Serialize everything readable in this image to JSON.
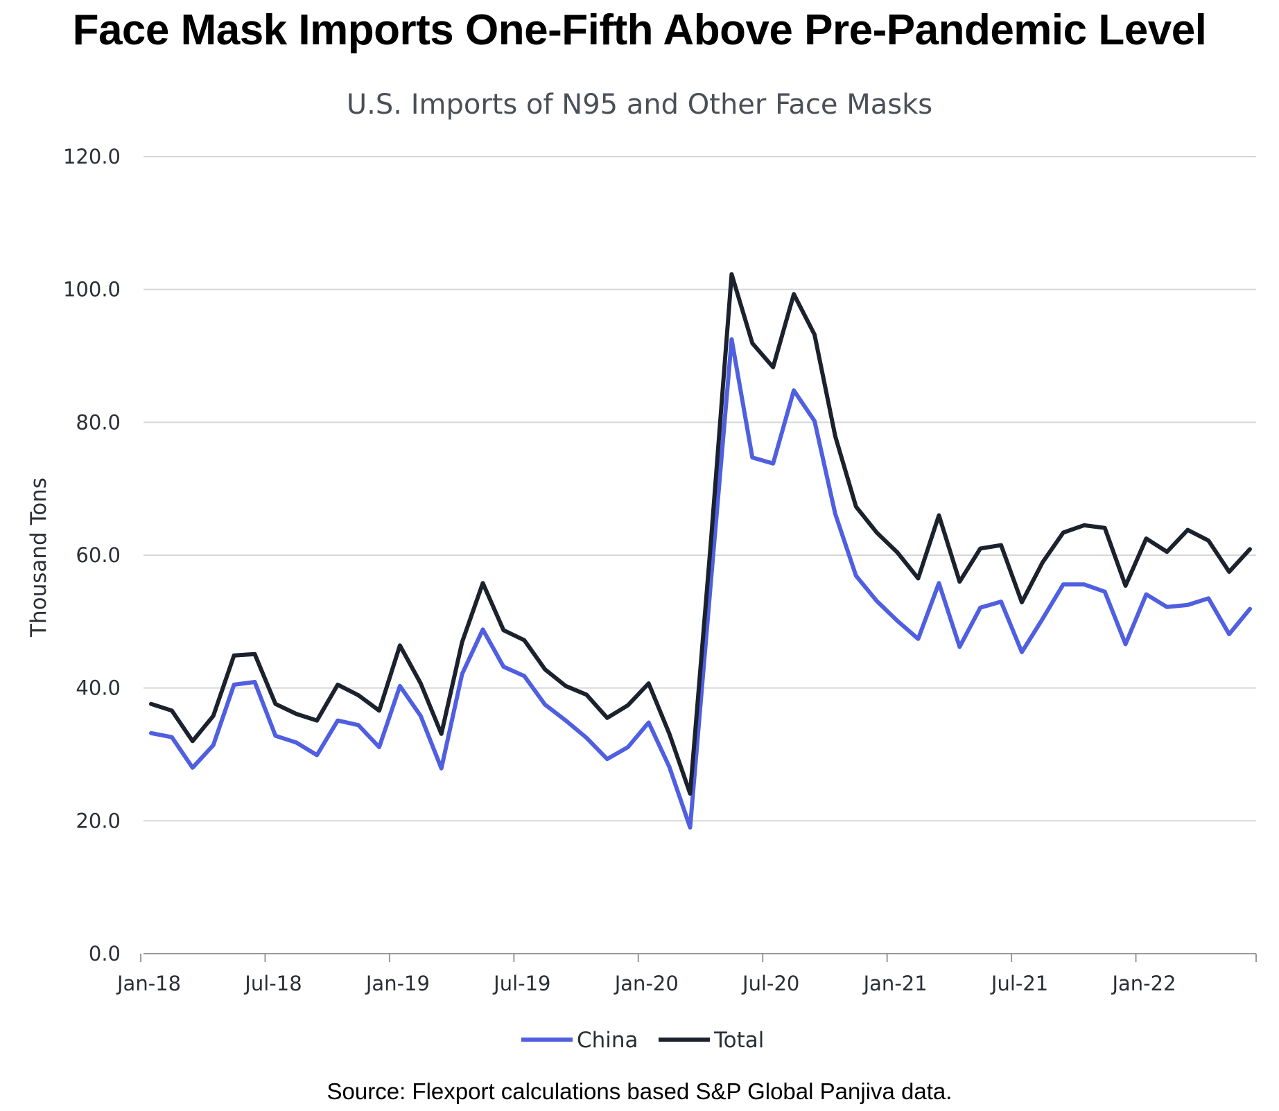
{
  "title": "Face Mask Imports One-Fifth Above Pre-Pandemic Level",
  "subtitle": "U.S. Imports of N95 and Other Face Masks",
  "source": "Source: Flexport calculations based S&P Global Panjiva data.",
  "colors": {
    "china": "#4f5fe0",
    "total": "#1b222d",
    "grid": "#d6d6d6",
    "axis": "#9a9a9a"
  },
  "chart_data": {
    "type": "line",
    "ylabel": "Thousand Tons",
    "xlabel": "",
    "ylim": [
      0,
      120
    ],
    "yticks": [
      "0.0",
      "20.0",
      "40.0",
      "60.0",
      "80.0",
      "100.0",
      "120.0"
    ],
    "x": [
      "Jan-18",
      "Feb-18",
      "Mar-18",
      "Apr-18",
      "May-18",
      "Jun-18",
      "Jul-18",
      "Aug-18",
      "Sep-18",
      "Oct-18",
      "Nov-18",
      "Dec-18",
      "Jan-19",
      "Feb-19",
      "Mar-19",
      "Apr-19",
      "May-19",
      "Jun-19",
      "Jul-19",
      "Aug-19",
      "Sep-19",
      "Oct-19",
      "Nov-19",
      "Dec-19",
      "Jan-20",
      "Feb-20",
      "Mar-20",
      "Apr-20",
      "May-20",
      "Jun-20",
      "Jul-20",
      "Aug-20",
      "Sep-20",
      "Oct-20",
      "Nov-20",
      "Dec-20",
      "Jan-21",
      "Feb-21",
      "Mar-21",
      "Apr-21",
      "May-21",
      "Jun-21",
      "Jul-21",
      "Aug-21",
      "Sep-21",
      "Oct-21",
      "Nov-21",
      "Dec-21",
      "Jan-22",
      "Feb-22",
      "Mar-22",
      "Apr-22",
      "May-22",
      "Jun-22"
    ],
    "xtick_labels": [
      "Jan-18",
      "Jul-18",
      "Jan-19",
      "Jul-19",
      "Jan-20",
      "Jul-20",
      "Jan-21",
      "Jul-21",
      "Jan-22"
    ],
    "series": [
      {
        "name": "China",
        "values": [
          33.2,
          32.6,
          28.0,
          31.4,
          40.5,
          40.9,
          32.8,
          31.8,
          29.9,
          35.1,
          34.4,
          31.1,
          40.3,
          35.8,
          27.9,
          42.1,
          48.8,
          43.2,
          41.8,
          37.5,
          35.1,
          32.5,
          29.3,
          31.1,
          34.8,
          28.1,
          19.0,
          56.0,
          92.5,
          74.7,
          73.8,
          84.8,
          80.2,
          66.2,
          56.9,
          53.1,
          50.1,
          47.4,
          55.8,
          46.2,
          52.1,
          53.0,
          45.4,
          50.4,
          55.6,
          55.6,
          54.5,
          46.6,
          54.1,
          52.2,
          52.5,
          53.5,
          48.1,
          51.9
        ]
      },
      {
        "name": "Total",
        "values": [
          37.6,
          36.6,
          32.0,
          35.8,
          44.9,
          45.1,
          37.6,
          36.1,
          35.1,
          40.5,
          38.9,
          36.6,
          46.4,
          40.7,
          33.1,
          46.9,
          55.8,
          48.7,
          47.2,
          42.8,
          40.3,
          39.0,
          35.5,
          37.4,
          40.7,
          33.1,
          24.1,
          62.0,
          102.3,
          91.9,
          88.3,
          99.3,
          93.2,
          77.9,
          67.3,
          63.4,
          60.4,
          56.5,
          66.0,
          56.0,
          61.0,
          61.5,
          52.9,
          58.9,
          63.4,
          64.5,
          64.1,
          55.4,
          62.5,
          60.5,
          63.8,
          62.2,
          57.5,
          60.9
        ]
      }
    ],
    "legend": {
      "position": "bottom-center"
    },
    "grid": true
  }
}
